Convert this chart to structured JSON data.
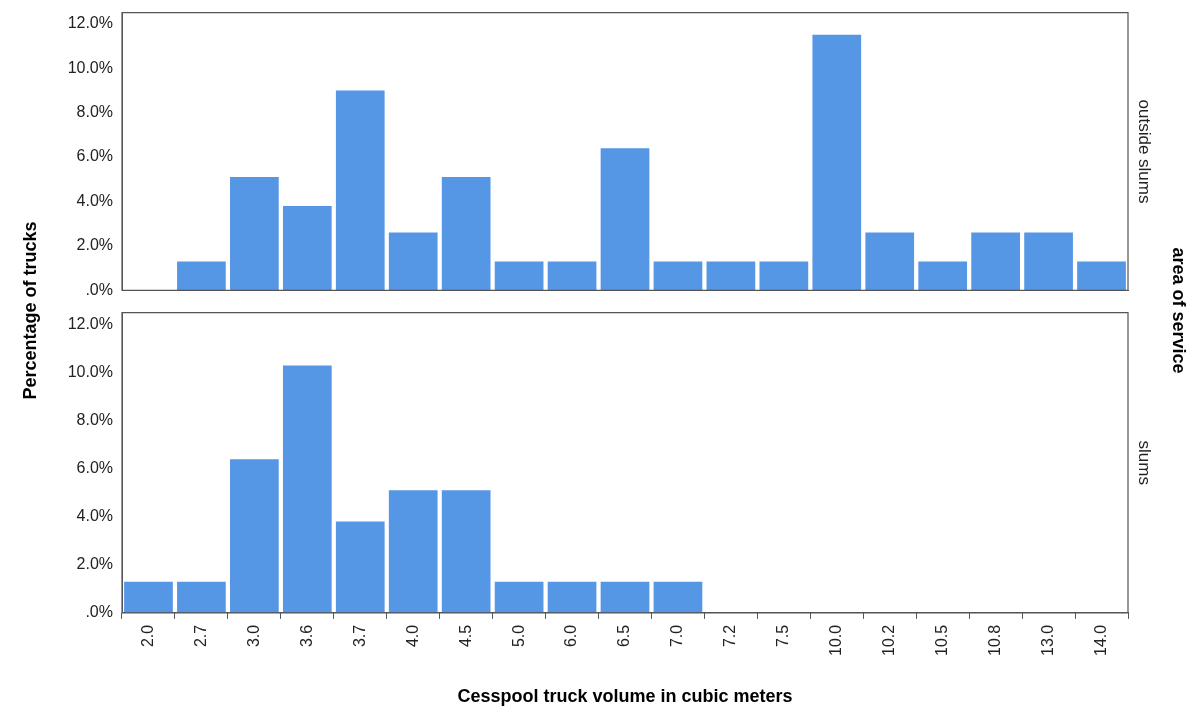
{
  "chart_data": [
    {
      "type": "bar",
      "title": "outside slums",
      "ylabel": "Percentage of trucks",
      "y2label": "area of service",
      "categories": [
        "2.0",
        "2.7",
        "3.0",
        "3.6",
        "3.7",
        "4.0",
        "4.5",
        "5.0",
        "6.0",
        "6.5",
        "7.0",
        "7.2",
        "7.5",
        "10.0",
        "10.2",
        "10.5",
        "10.8",
        "13.0",
        "14.0"
      ],
      "values": [
        0,
        1.3,
        5.1,
        3.8,
        9.0,
        2.6,
        5.1,
        1.3,
        1.3,
        6.4,
        1.3,
        1.3,
        1.3,
        11.5,
        2.6,
        1.3,
        2.6,
        2.6,
        1.3
      ],
      "color": "#5596e5",
      "ylim": [
        0,
        12.5
      ],
      "yticks": [
        {
          "value": 0,
          "label": ".0%"
        },
        {
          "value": 2,
          "label": "2.0%"
        },
        {
          "value": 4,
          "label": "4.0%"
        },
        {
          "value": 6,
          "label": "6.0%"
        },
        {
          "value": 8,
          "label": "8.0%"
        },
        {
          "value": 10,
          "label": "10.0%"
        },
        {
          "value": 12,
          "label": "12.0%"
        }
      ],
      "grid": false,
      "legend": false,
      "tick_labels": "y"
    },
    {
      "type": "bar",
      "title": "slums",
      "xlabel": "Cesspool truck volume in cubic meters",
      "categories": [
        "2.0",
        "2.7",
        "3.0",
        "3.6",
        "3.7",
        "4.0",
        "4.5",
        "5.0",
        "6.0",
        "6.5",
        "7.0",
        "7.2",
        "7.5",
        "10.0",
        "10.2",
        "10.5",
        "10.8",
        "13.0",
        "14.0"
      ],
      "values": [
        1.3,
        1.3,
        6.4,
        10.3,
        3.8,
        5.1,
        5.1,
        1.3,
        1.3,
        1.3,
        1.3,
        0,
        0,
        0,
        0,
        0,
        0,
        0,
        0
      ],
      "color": "#5596e5",
      "ylim": [
        0,
        12.5
      ],
      "yticks": [
        {
          "value": 0,
          "label": ".0%"
        },
        {
          "value": 2,
          "label": "2.0%"
        },
        {
          "value": 4,
          "label": "4.0%"
        },
        {
          "value": 6,
          "label": "6.0%"
        },
        {
          "value": 8,
          "label": "8.0%"
        },
        {
          "value": 10,
          "label": "10.0%"
        },
        {
          "value": 12,
          "label": "12.0%"
        }
      ],
      "grid": false,
      "legend": false
    }
  ]
}
